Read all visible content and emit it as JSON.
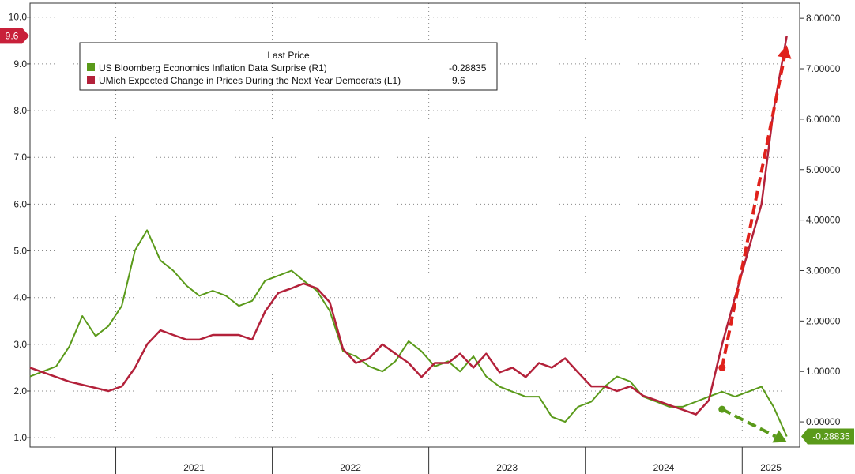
{
  "chart_data": {
    "type": "line",
    "legend": {
      "title": "Last Price",
      "placement": "top-left",
      "entries": [
        {
          "label": "US Bloomberg Economics Inflation Data Surprise  (R1)",
          "value": "-0.28835",
          "color": "#5a9a1a"
        },
        {
          "label": "UMich Expected Change in Prices During the Next Year Democrats  (L1)",
          "value": "9.6",
          "color": "#b3213a"
        }
      ]
    },
    "left_axis": {
      "ticks": [
        "1.0",
        "2.0",
        "3.0",
        "4.0",
        "5.0",
        "6.0",
        "7.0",
        "8.0",
        "9.0",
        "10.0"
      ],
      "range": [
        0.8,
        10.3
      ]
    },
    "right_axis": {
      "ticks": [
        "0.00000",
        "1.00000",
        "2.00000",
        "3.00000",
        "4.00000",
        "5.00000",
        "6.00000",
        "7.00000",
        "8.00000"
      ],
      "range": [
        -0.5,
        8.3
      ]
    },
    "x_axis": {
      "labels": [
        "2021",
        "2022",
        "2023",
        "2024",
        "2025"
      ],
      "range": [
        "2020-06-15",
        "2025-05-15"
      ]
    },
    "grid": true,
    "last_value_labels": {
      "left": "9.6",
      "right": "-0.28835"
    },
    "series": [
      {
        "name": "UMich Expected Change in Prices During the Next Year Democrats",
        "axis": "left",
        "color": "#b3213a",
        "x": [
          "2020-06",
          "2020-09",
          "2020-12",
          "2021-01",
          "2021-02",
          "2021-03",
          "2021-04",
          "2021-05",
          "2021-06",
          "2021-07",
          "2021-08",
          "2021-09",
          "2021-10",
          "2021-11",
          "2021-12",
          "2022-01",
          "2022-02",
          "2022-03",
          "2022-04",
          "2022-05",
          "2022-06",
          "2022-07",
          "2022-08",
          "2022-09",
          "2022-10",
          "2022-11",
          "2022-12",
          "2023-01",
          "2023-02",
          "2023-03",
          "2023-04",
          "2023-05",
          "2023-06",
          "2023-07",
          "2023-08",
          "2023-09",
          "2023-10",
          "2023-11",
          "2023-12",
          "2024-01",
          "2024-02",
          "2024-03",
          "2024-04",
          "2024-05",
          "2024-06",
          "2024-07",
          "2024-08",
          "2024-09",
          "2024-10",
          "2024-11",
          "2024-12",
          "2025-01",
          "2025-02",
          "2025-03",
          "2025-04"
        ],
        "values": [
          2.5,
          2.2,
          2.0,
          2.1,
          2.5,
          3.0,
          3.3,
          3.2,
          3.1,
          3.1,
          3.2,
          3.2,
          3.2,
          3.1,
          3.7,
          4.1,
          4.2,
          4.3,
          4.2,
          3.9,
          2.9,
          2.6,
          2.7,
          3.0,
          2.8,
          2.6,
          2.3,
          2.6,
          2.6,
          2.8,
          2.5,
          2.8,
          2.4,
          2.5,
          2.3,
          2.6,
          2.5,
          2.7,
          2.4,
          2.1,
          2.1,
          2.0,
          2.1,
          1.9,
          1.8,
          1.7,
          1.6,
          1.5,
          1.8,
          3.0,
          4.0,
          5.0,
          6.0,
          8.0,
          9.6
        ]
      },
      {
        "name": "US Bloomberg Economics Inflation Data Surprise",
        "axis": "right",
        "color": "#5a9a1a",
        "x": [
          "2020-06",
          "2020-07",
          "2020-08",
          "2020-09",
          "2020-10",
          "2020-11",
          "2020-12",
          "2021-01",
          "2021-02",
          "2021-03",
          "2021-04",
          "2021-05",
          "2021-06",
          "2021-07",
          "2021-08",
          "2021-09",
          "2021-10",
          "2021-11",
          "2021-12",
          "2022-01",
          "2022-02",
          "2022-03",
          "2022-04",
          "2022-05",
          "2022-06",
          "2022-07",
          "2022-08",
          "2022-09",
          "2022-10",
          "2022-11",
          "2022-12",
          "2023-01",
          "2023-02",
          "2023-03",
          "2023-04",
          "2023-05",
          "2023-06",
          "2023-07",
          "2023-08",
          "2023-09",
          "2023-10",
          "2023-11",
          "2023-12",
          "2024-01",
          "2024-02",
          "2024-03",
          "2024-04",
          "2024-05",
          "2024-06",
          "2024-07",
          "2024-08",
          "2024-09",
          "2024-10",
          "2024-11",
          "2024-12",
          "2025-01",
          "2025-02",
          "2025-03",
          "2025-04"
        ],
        "values": [
          0.9,
          1.0,
          1.1,
          1.5,
          2.1,
          1.7,
          1.9,
          2.3,
          3.4,
          3.8,
          3.2,
          3.0,
          2.7,
          2.5,
          2.6,
          2.5,
          2.3,
          2.4,
          2.8,
          2.9,
          3.0,
          2.8,
          2.6,
          2.2,
          1.4,
          1.3,
          1.1,
          1.0,
          1.2,
          1.6,
          1.4,
          1.1,
          1.2,
          1.0,
          1.3,
          0.9,
          0.7,
          0.6,
          0.5,
          0.5,
          0.1,
          0.0,
          0.3,
          0.4,
          0.7,
          0.9,
          0.8,
          0.5,
          0.4,
          0.3,
          0.3,
          0.4,
          0.5,
          0.6,
          0.5,
          0.6,
          0.7,
          0.3,
          -0.28835
        ]
      }
    ],
    "annotations": [
      {
        "type": "arrow",
        "color": "#e0211b",
        "style": "dashed",
        "direction": "up",
        "from": {
          "x": "2024-11",
          "y_left": 2.5
        },
        "to": {
          "x": "2025-04",
          "y_left": 9.4
        }
      },
      {
        "type": "arrow",
        "color": "#5a9a1a",
        "style": "dashed",
        "direction": "down",
        "from": {
          "x": "2024-11",
          "y_right": 0.25
        },
        "to": {
          "x": "2025-04",
          "y_right": -0.4
        }
      }
    ]
  }
}
